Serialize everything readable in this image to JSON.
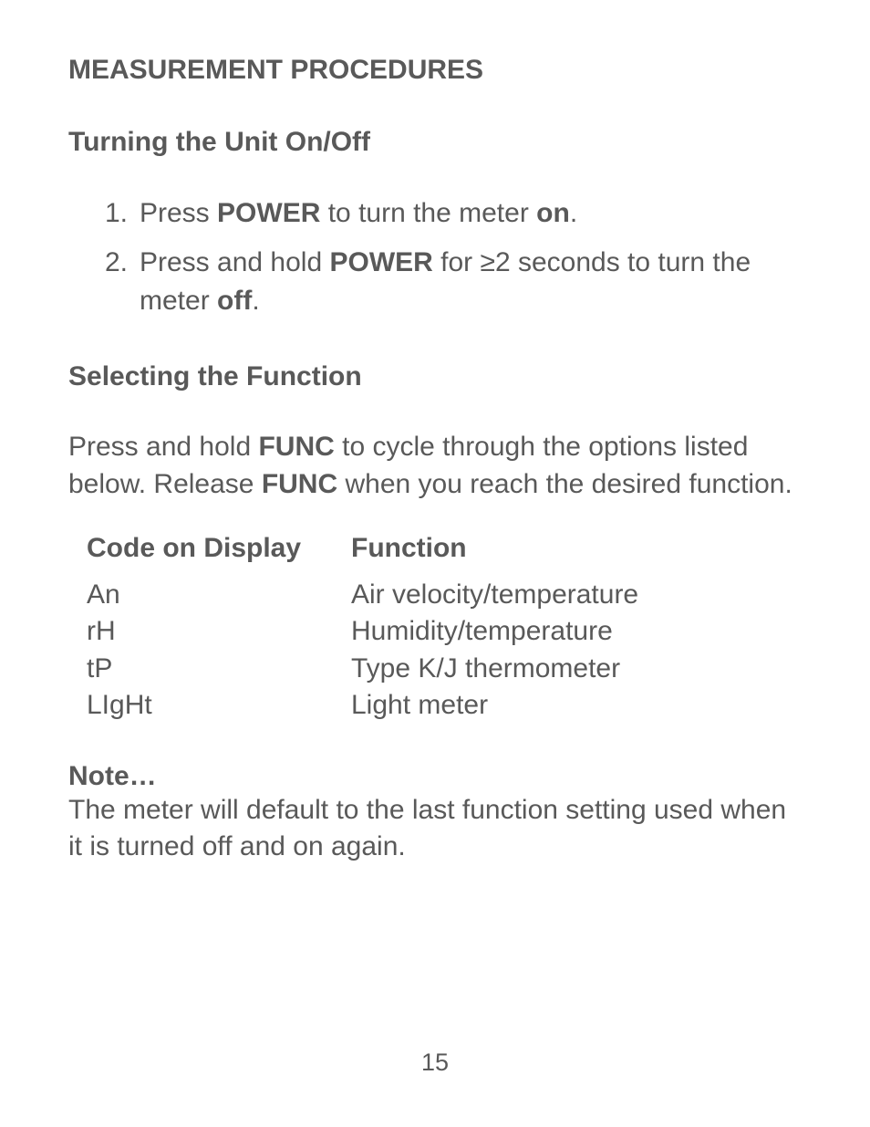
{
  "title": "MEASUREMENT PROCEDURES",
  "section1": {
    "heading": "Turning the Unit On/Off",
    "items": [
      {
        "number": "1.",
        "pre1": "Press ",
        "bold1": "POWER",
        "mid1": " to turn the meter ",
        "bold2": "on",
        "post1": "."
      },
      {
        "number": "2.",
        "pre1": "Press and hold ",
        "bold1": "POWER",
        "mid1": " for ≥2 seconds to turn the meter ",
        "bold2": "off",
        "post1": "."
      }
    ]
  },
  "section2": {
    "heading": "Selecting the Function",
    "para_pre": "Press and hold ",
    "para_bold1": "FUNC",
    "para_mid": " to cycle through the options listed below. Release ",
    "para_bold2": "FUNC",
    "para_post": " when you reach the desired function.",
    "table": {
      "header_col1": "Code on Display",
      "header_col2": "Function",
      "rows": [
        {
          "code": "An",
          "func": "Air velocity/temperature"
        },
        {
          "code": "rH",
          "func": "Humidity/temperature"
        },
        {
          "code": "tP",
          "func": "Type K/J thermometer"
        },
        {
          "code": "LIgHt",
          "func": "Light meter"
        }
      ]
    }
  },
  "note": {
    "heading": "Note…",
    "text": "The meter will default to the last function setting used when it is turned off and on again."
  },
  "page_number": "15",
  "colors": {
    "text": "#595959",
    "background": "#ffffff"
  },
  "typography": {
    "font_family": "Arial, Helvetica, sans-serif",
    "body_fontsize": 30,
    "page_number_fontsize": 27
  }
}
